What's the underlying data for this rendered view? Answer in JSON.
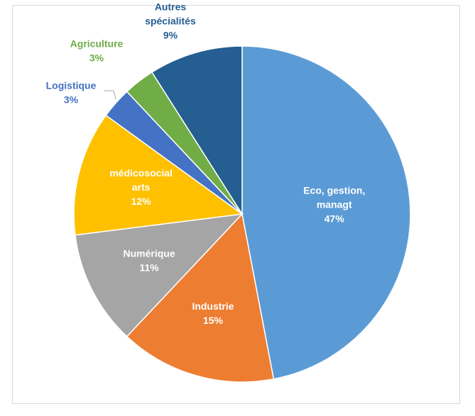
{
  "chart_data": {
    "type": "pie",
    "title": "",
    "slices": [
      {
        "lines": [
          "Eco, gestion,",
          "managt",
          "47%"
        ],
        "value": 47,
        "color": "#5b9bd5",
        "text_color": "#ffffff",
        "label_inside": true
      },
      {
        "lines": [
          "Industrie",
          "15%"
        ],
        "value": 15,
        "color": "#ed7d31",
        "text_color": "#ffffff",
        "label_inside": true
      },
      {
        "lines": [
          "Numérique",
          "11%"
        ],
        "value": 11,
        "color": "#a5a5a5",
        "text_color": "#ffffff",
        "label_inside": true
      },
      {
        "lines": [
          "médicosocial",
          "arts",
          "12%"
        ],
        "value": 12,
        "color": "#ffc000",
        "text_color": "#ffffff",
        "label_inside": true
      },
      {
        "lines": [
          "Logistique",
          "3%"
        ],
        "value": 3,
        "color": "#4472c4",
        "text_color": "#4472c4",
        "label_inside": false
      },
      {
        "lines": [
          "Agriculture",
          "3%"
        ],
        "value": 3,
        "color": "#70ad47",
        "text_color": "#70ad47",
        "label_inside": false
      },
      {
        "lines": [
          "Autres",
          "spécialités",
          "9%"
        ],
        "value": 9,
        "color": "#255e91",
        "text_color": "#255e91",
        "label_inside": false
      }
    ],
    "legend": "none",
    "start": "12 o'clock, clockwise"
  }
}
